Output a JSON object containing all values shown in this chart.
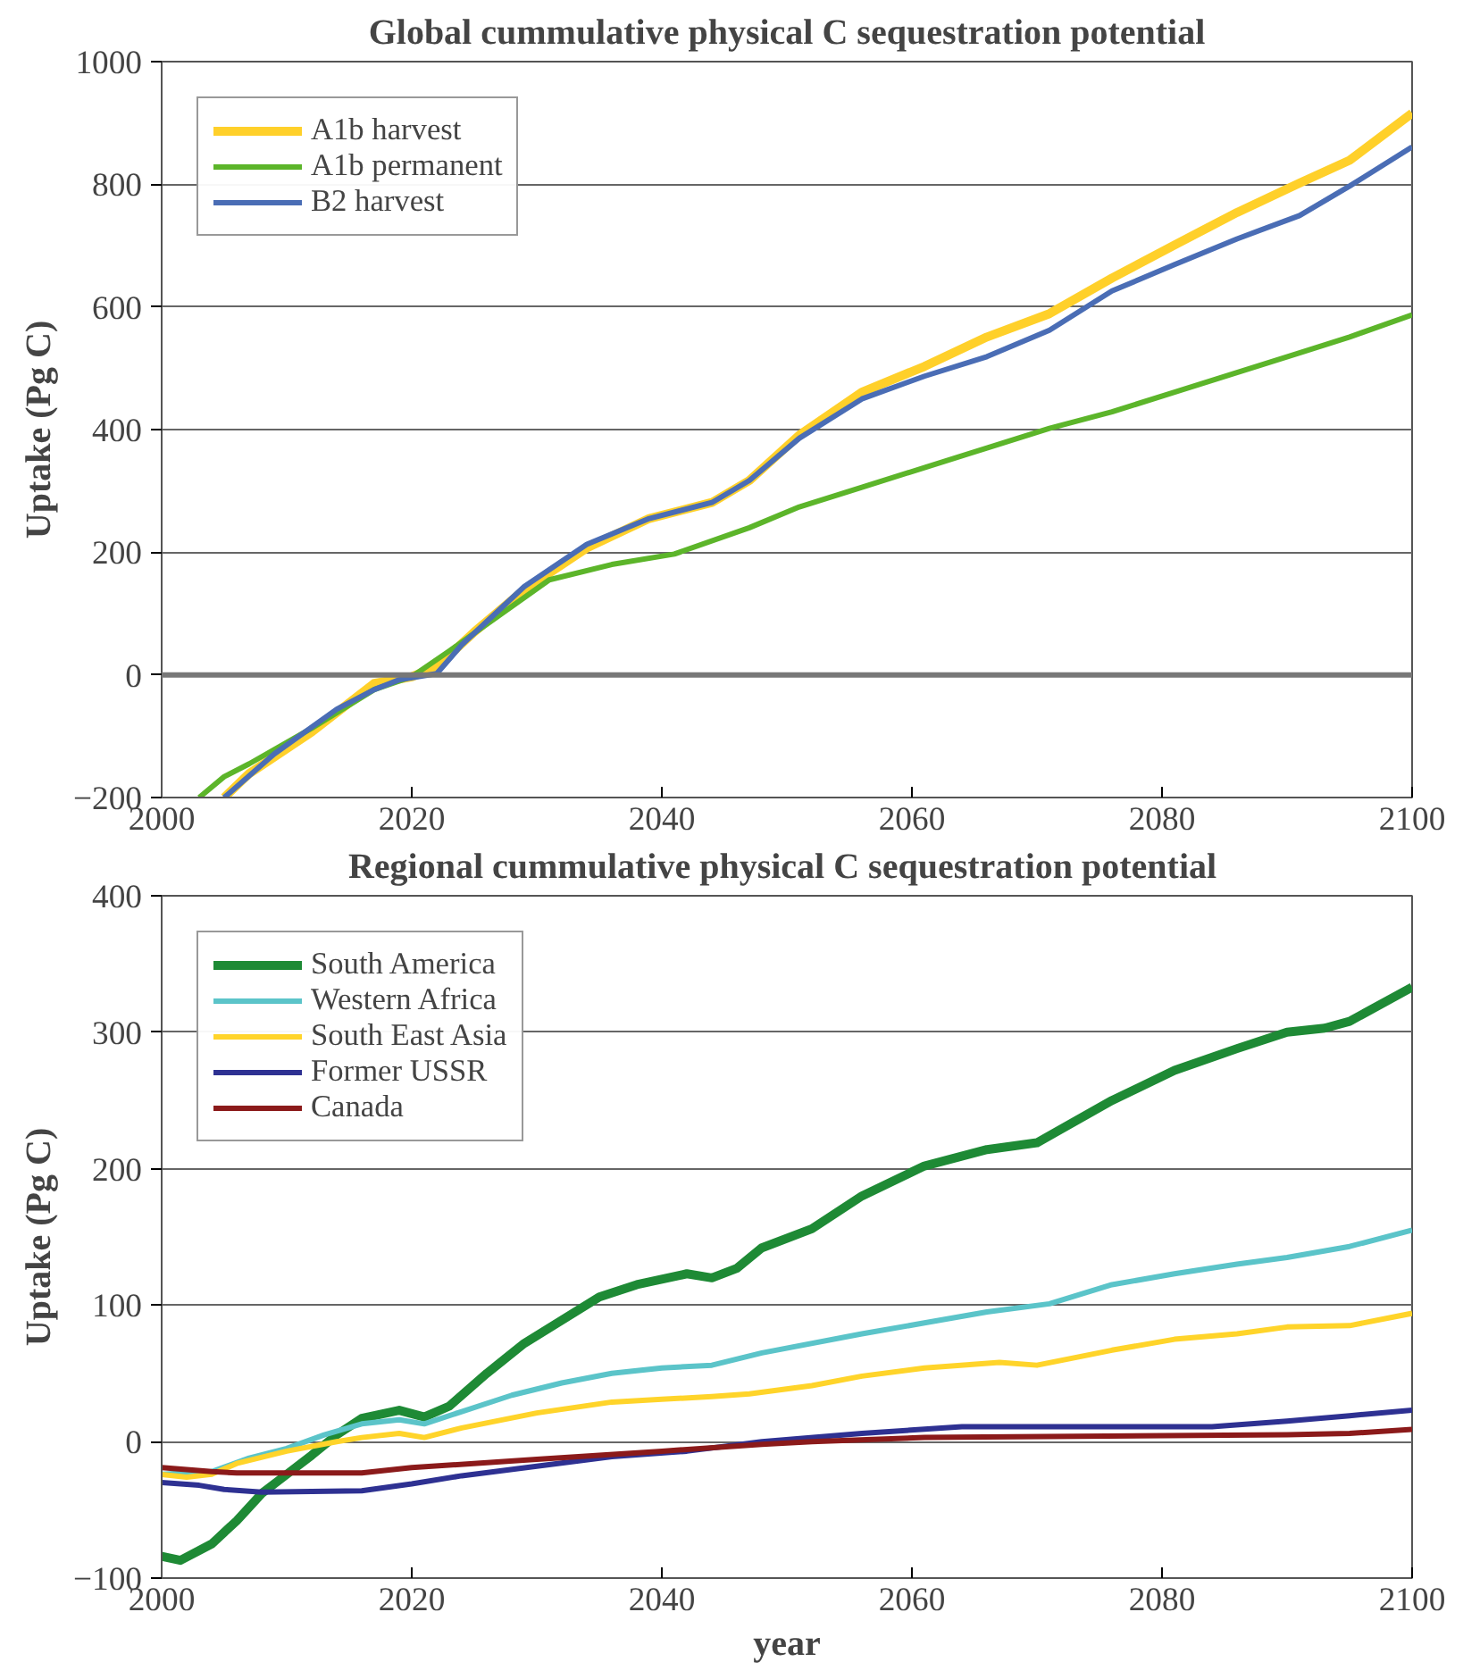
{
  "chart_data": [
    {
      "type": "line",
      "title": "Global cummulative physical C sequestration potential",
      "ylabel": "Uptake (Pg C)",
      "xlim": [
        2000,
        2100
      ],
      "xticks": [
        2000,
        2020,
        2040,
        2060,
        2080,
        2100
      ],
      "ylim": [
        -200,
        1000
      ],
      "yticks": [
        -200,
        0,
        200,
        400,
        600,
        800,
        1000
      ],
      "grid": "y",
      "legend": "top left",
      "ref_lines": [
        {
          "axis": "y",
          "value": 0,
          "color": "#777777"
        }
      ],
      "series": [
        {
          "name": "A1b harvest",
          "color": "#ffd02a",
          "x": [
            2005,
            2007,
            2012,
            2017,
            2020,
            2022,
            2025,
            2029,
            2034,
            2039,
            2044,
            2047,
            2051,
            2056,
            2061,
            2066,
            2071,
            2076,
            2081,
            2086,
            2091,
            2095,
            2100
          ],
          "values": [
            -200,
            -161,
            -93,
            -14,
            -3,
            13,
            70,
            139,
            207,
            255,
            281,
            317,
            391,
            461,
            503,
            551,
            589,
            647,
            701,
            754,
            802,
            839,
            916
          ]
        },
        {
          "name": "A1b permanent",
          "color": "#5cb52a",
          "x": [
            2003,
            2005,
            2007,
            2012,
            2017,
            2020,
            2023,
            2027,
            2031,
            2036,
            2041,
            2047,
            2051,
            2056,
            2061,
            2066,
            2071,
            2076,
            2081,
            2086,
            2091,
            2095,
            2100
          ],
          "values": [
            -200,
            -166,
            -145,
            -87,
            -24,
            -3,
            39,
            97,
            155,
            180,
            197,
            240,
            274,
            306,
            338,
            370,
            402,
            429,
            461,
            493,
            525,
            551,
            587
          ]
        },
        {
          "name": "B2 harvest",
          "color": "#4a6db5",
          "x": [
            2005,
            2009,
            2014,
            2017,
            2019,
            2022,
            2024,
            2029,
            2034,
            2039,
            2044,
            2047,
            2051,
            2056,
            2061,
            2066,
            2071,
            2076,
            2081,
            2086,
            2091,
            2095,
            2100
          ],
          "values": [
            -200,
            -129,
            -56,
            -24,
            -8,
            2,
            49,
            144,
            213,
            255,
            281,
            317,
            386,
            450,
            487,
            519,
            562,
            626,
            669,
            711,
            749,
            797,
            861
          ]
        }
      ]
    },
    {
      "type": "line",
      "title": "Regional cummulative physical  C sequestration potential",
      "xlabel": "year",
      "ylabel": "Uptake (Pg C)",
      "xlim": [
        2000,
        2100
      ],
      "xticks": [
        2000,
        2020,
        2040,
        2060,
        2080,
        2100
      ],
      "ylim": [
        -100,
        400
      ],
      "yticks": [
        -100,
        0,
        100,
        200,
        300,
        400
      ],
      "grid": "y",
      "legend": "top left",
      "series": [
        {
          "name": "South America",
          "color": "#1e8a35",
          "x": [
            2000,
            2001.5,
            2004,
            2006,
            2008,
            2010,
            2012,
            2014,
            2016,
            2019,
            2021,
            2023,
            2026,
            2029,
            2032,
            2035,
            2038,
            2042,
            2044,
            2046,
            2048,
            2052,
            2056,
            2061,
            2066,
            2070,
            2076,
            2081,
            2086,
            2090,
            2093,
            2095,
            2100
          ],
          "values": [
            -84,
            -87,
            -75,
            -58,
            -38,
            -24,
            -10,
            5,
            17,
            23,
            18,
            26,
            50,
            72,
            89,
            106,
            115,
            123,
            120,
            127,
            142,
            156,
            180,
            202,
            214,
            219,
            250,
            272,
            288,
            300,
            303,
            308,
            333
          ]
        },
        {
          "name": "Western Africa",
          "color": "#5bc4c9",
          "x": [
            2000,
            2004,
            2007,
            2010,
            2013,
            2016,
            2019,
            2021,
            2024,
            2028,
            2032,
            2036,
            2040,
            2044,
            2048,
            2056,
            2061,
            2066,
            2071,
            2076,
            2081,
            2086,
            2090,
            2095,
            2100
          ],
          "values": [
            -24,
            -22,
            -12,
            -5,
            5,
            13,
            16,
            13,
            22,
            34,
            43,
            50,
            54,
            56,
            65,
            79,
            87,
            95,
            101,
            115,
            123,
            130,
            135,
            143,
            155
          ]
        },
        {
          "name": "South East Asia",
          "color": "#ffd42a",
          "x": [
            2000,
            2002,
            2004,
            2006,
            2010,
            2014,
            2016,
            2019,
            2021,
            2024,
            2030,
            2036,
            2040,
            2044,
            2047,
            2052,
            2056,
            2061,
            2067,
            2070,
            2076,
            2081,
            2086,
            2090,
            2095,
            2100
          ],
          "values": [
            -24,
            -26,
            -24,
            -16,
            -7,
            0,
            3,
            6,
            3,
            10,
            21,
            29,
            31,
            33,
            35,
            41,
            48,
            54,
            58,
            56,
            67,
            75,
            79,
            84,
            85,
            94
          ]
        },
        {
          "name": "Former USSR",
          "color": "#2e3192",
          "x": [
            2000,
            2003,
            2005,
            2008,
            2016,
            2020,
            2024,
            2030,
            2036,
            2042,
            2048,
            2056,
            2064,
            2084,
            2090,
            2095,
            2100
          ],
          "values": [
            -30,
            -32,
            -35,
            -37,
            -36,
            -31,
            -25,
            -18,
            -11,
            -7,
            0,
            6,
            11,
            11,
            15,
            19,
            23
          ]
        },
        {
          "name": "Canada",
          "color": "#8b1a1a",
          "x": [
            2000,
            2004,
            2006,
            2016,
            2020,
            2030,
            2040,
            2048,
            2052,
            2061,
            2090,
            2095,
            2100
          ],
          "values": [
            -19,
            -22,
            -23,
            -23,
            -19,
            -13,
            -7,
            -2,
            0,
            3,
            5,
            6,
            9
          ]
        }
      ]
    }
  ]
}
